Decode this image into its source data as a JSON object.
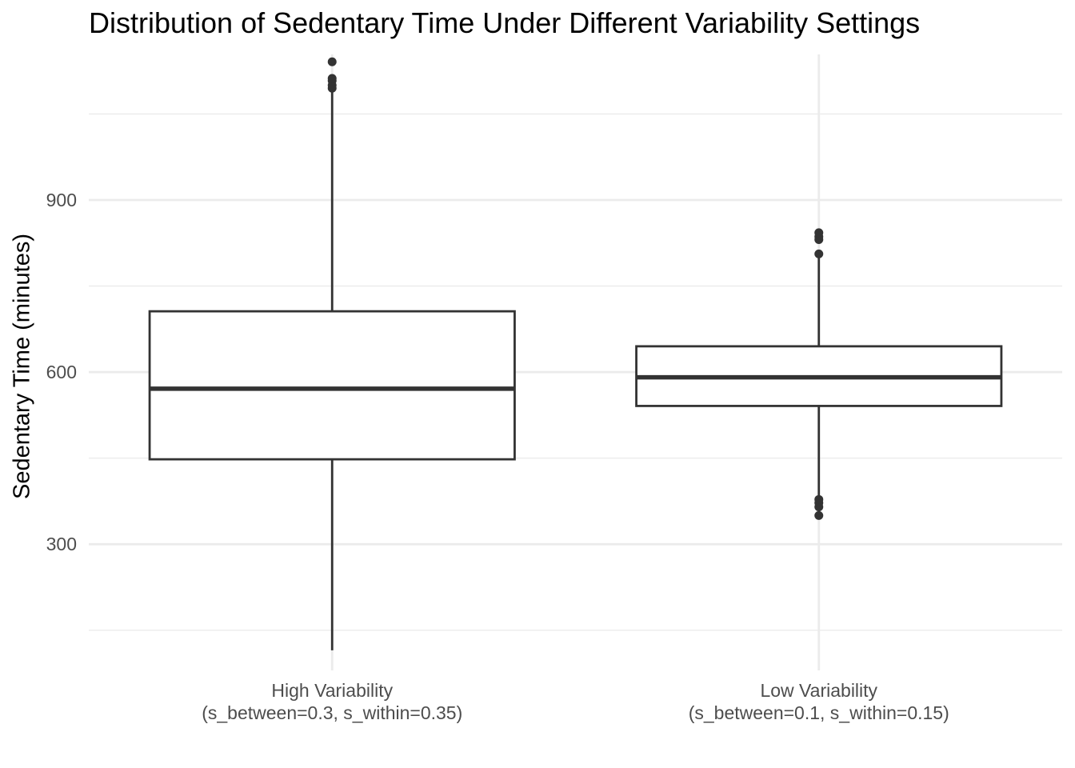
{
  "chart_data": {
    "type": "boxplot",
    "title": "Distribution of Sedentary Time Under Different Variability Settings",
    "xlabel": "",
    "ylabel": "Sedentary Time (minutes)",
    "ylim": [
      80,
      1165
    ],
    "y_ticks": [
      300,
      600,
      900
    ],
    "y_minor_ticks": [
      150,
      450,
      750,
      1050
    ],
    "grid": true,
    "categories": [
      "High Variability\n(s_between=0.3, s_within=0.35)",
      "Low Variability\n(s_between=0.1, s_within=0.15)"
    ],
    "boxes": [
      {
        "category": "High Variability\n(s_between=0.3, s_within=0.35)",
        "whisker_low": 115,
        "q1": 448,
        "median": 571,
        "q3": 706,
        "whisker_high": 1088,
        "outliers": [
          1095,
          1100,
          1108,
          1112,
          1141
        ]
      },
      {
        "category": "Low Variability\n(s_between=0.1, s_within=0.15)",
        "whisker_low": 385,
        "q1": 541,
        "median": 591,
        "q3": 645,
        "whisker_high": 800,
        "outliers": [
          350,
          365,
          372,
          378,
          806,
          831,
          836,
          843
        ]
      }
    ],
    "colors": {
      "box_line": "#333333",
      "box_fill": "#ffffff",
      "grid": "#ebebeb",
      "axis_text": "#4d4d4d"
    }
  }
}
